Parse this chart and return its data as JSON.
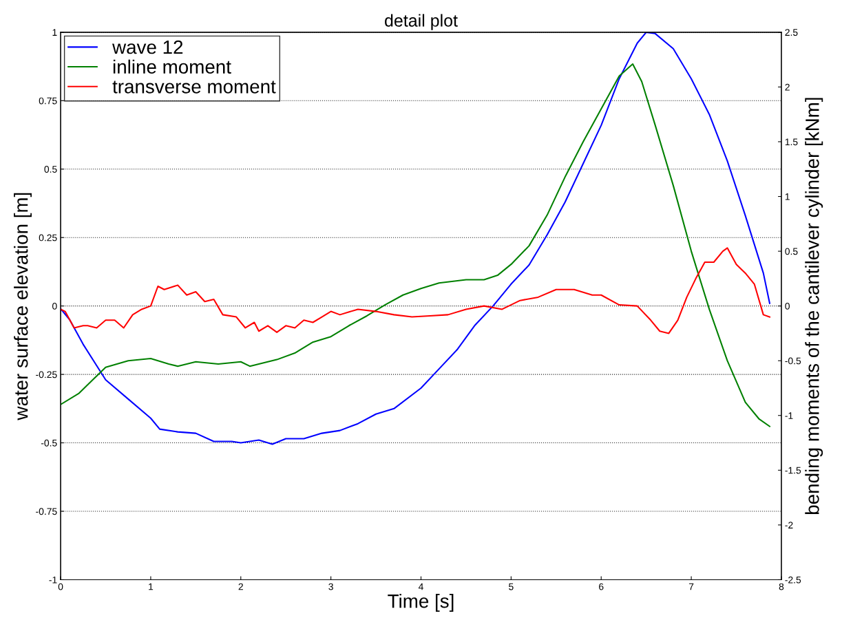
{
  "chart_data": {
    "type": "line",
    "title": "detail plot",
    "xlabel": "Time [s]",
    "ylabel": "water surface elevation [m]",
    "y2label": "bending moments of the cantilever cylinder [kNm]",
    "xlim": [
      0,
      8
    ],
    "xticks": [
      0,
      1,
      2,
      3,
      4,
      5,
      6,
      7,
      8
    ],
    "ylim": [
      -1,
      1
    ],
    "yticks": [
      -1,
      -0.75,
      -0.5,
      -0.25,
      0,
      0.25,
      0.5,
      0.75,
      1
    ],
    "y2lim": [
      -2.5,
      2.5
    ],
    "y2ticks": [
      -2.5,
      -2,
      -1.5,
      -1,
      -0.5,
      0,
      0.5,
      1,
      1.5,
      2,
      2.5
    ],
    "grid": "y",
    "legend": "top left",
    "line_style": "solid",
    "marker": "none",
    "series": [
      {
        "name": "wave 12",
        "color": "#0000ff",
        "x": [
          0,
          0.1,
          0.25,
          0.5,
          0.75,
          1.0,
          1.1,
          1.3,
          1.5,
          1.7,
          1.9,
          2.0,
          2.2,
          2.35,
          2.5,
          2.7,
          2.9,
          3.1,
          3.3,
          3.5,
          3.7,
          4.0,
          4.2,
          4.4,
          4.6,
          4.8,
          5.0,
          5.2,
          5.4,
          5.6,
          5.8,
          6.0,
          6.2,
          6.4,
          6.5,
          6.6,
          6.8,
          7.0,
          7.2,
          7.4,
          7.6,
          7.8,
          7.87
        ],
        "values": [
          -0.01,
          -0.05,
          -0.14,
          -0.27,
          -0.34,
          -0.41,
          -0.45,
          -0.46,
          -0.465,
          -0.495,
          -0.495,
          -0.5,
          -0.49,
          -0.505,
          -0.485,
          -0.485,
          -0.465,
          -0.455,
          -0.43,
          -0.395,
          -0.375,
          -0.3,
          -0.23,
          -0.16,
          -0.07,
          0.0,
          0.08,
          0.15,
          0.26,
          0.38,
          0.52,
          0.66,
          0.83,
          0.96,
          1.0,
          0.995,
          0.94,
          0.83,
          0.7,
          0.53,
          0.33,
          0.12,
          0.01
        ]
      },
      {
        "name": "inline moment",
        "color": "#008000",
        "axis": "y2",
        "x": [
          0,
          0.2,
          0.35,
          0.5,
          0.75,
          1.0,
          1.2,
          1.3,
          1.5,
          1.75,
          2.0,
          2.1,
          2.4,
          2.6,
          2.8,
          3.0,
          3.2,
          3.4,
          3.6,
          3.8,
          4.0,
          4.2,
          4.5,
          4.7,
          4.85,
          5.0,
          5.2,
          5.4,
          5.6,
          5.8,
          6.0,
          6.2,
          6.35,
          6.45,
          6.6,
          6.8,
          7.0,
          7.2,
          7.4,
          7.6,
          7.75,
          7.87
        ],
        "values": [
          -0.9,
          -0.8,
          -0.68,
          -0.56,
          -0.5,
          -0.48,
          -0.53,
          -0.55,
          -0.51,
          -0.53,
          -0.51,
          -0.55,
          -0.49,
          -0.43,
          -0.33,
          -0.28,
          -0.18,
          -0.09,
          0.01,
          0.1,
          0.16,
          0.21,
          0.24,
          0.24,
          0.28,
          0.38,
          0.55,
          0.83,
          1.18,
          1.5,
          1.8,
          2.1,
          2.21,
          2.05,
          1.65,
          1.1,
          0.5,
          -0.03,
          -0.5,
          -0.88,
          -1.03,
          -1.1
        ]
      },
      {
        "name": "transverse moment",
        "color": "#ff0000",
        "axis": "y2",
        "x": [
          0,
          0.05,
          0.15,
          0.25,
          0.3,
          0.4,
          0.5,
          0.6,
          0.7,
          0.8,
          0.9,
          1.0,
          1.08,
          1.15,
          1.3,
          1.4,
          1.5,
          1.6,
          1.7,
          1.8,
          1.95,
          2.05,
          2.15,
          2.2,
          2.3,
          2.4,
          2.5,
          2.6,
          2.7,
          2.8,
          2.9,
          3.0,
          3.1,
          3.3,
          3.5,
          3.7,
          3.9,
          4.1,
          4.3,
          4.5,
          4.7,
          4.9,
          5.1,
          5.3,
          5.5,
          5.7,
          5.9,
          6.0,
          6.2,
          6.4,
          6.55,
          6.65,
          6.75,
          6.85,
          6.95,
          7.05,
          7.15,
          7.25,
          7.35,
          7.4,
          7.5,
          7.6,
          7.7,
          7.8,
          7.87
        ],
        "values": [
          -0.03,
          -0.05,
          -0.2,
          -0.18,
          -0.18,
          -0.2,
          -0.13,
          -0.13,
          -0.2,
          -0.08,
          -0.03,
          0,
          0.18,
          0.15,
          0.19,
          0.1,
          0.13,
          0.04,
          0.06,
          -0.08,
          -0.1,
          -0.2,
          -0.15,
          -0.23,
          -0.18,
          -0.24,
          -0.18,
          -0.2,
          -0.13,
          -0.15,
          -0.1,
          -0.05,
          -0.08,
          -0.03,
          -0.05,
          -0.08,
          -0.1,
          -0.09,
          -0.08,
          -0.03,
          0,
          -0.03,
          0.05,
          0.08,
          0.15,
          0.15,
          0.1,
          0.1,
          0.01,
          0,
          -0.13,
          -0.23,
          -0.25,
          -0.13,
          0.08,
          0.25,
          0.4,
          0.4,
          0.5,
          0.53,
          0.38,
          0.3,
          0.2,
          -0.08,
          -0.1
        ]
      }
    ]
  }
}
